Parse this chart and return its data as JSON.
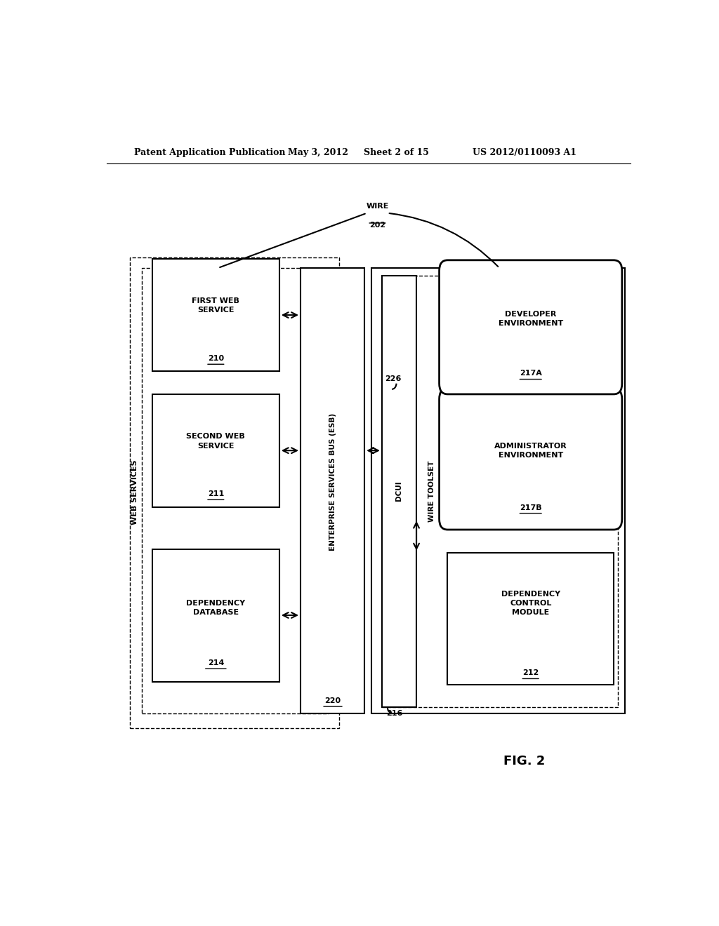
{
  "bg_color": "#ffffff",
  "header_text": "Patent Application Publication",
  "header_date": "May 3, 2012",
  "header_sheet": "Sheet 2 of 15",
  "header_patent": "US 2012/0110093 A1",
  "fig_label": "FIG. 2"
}
